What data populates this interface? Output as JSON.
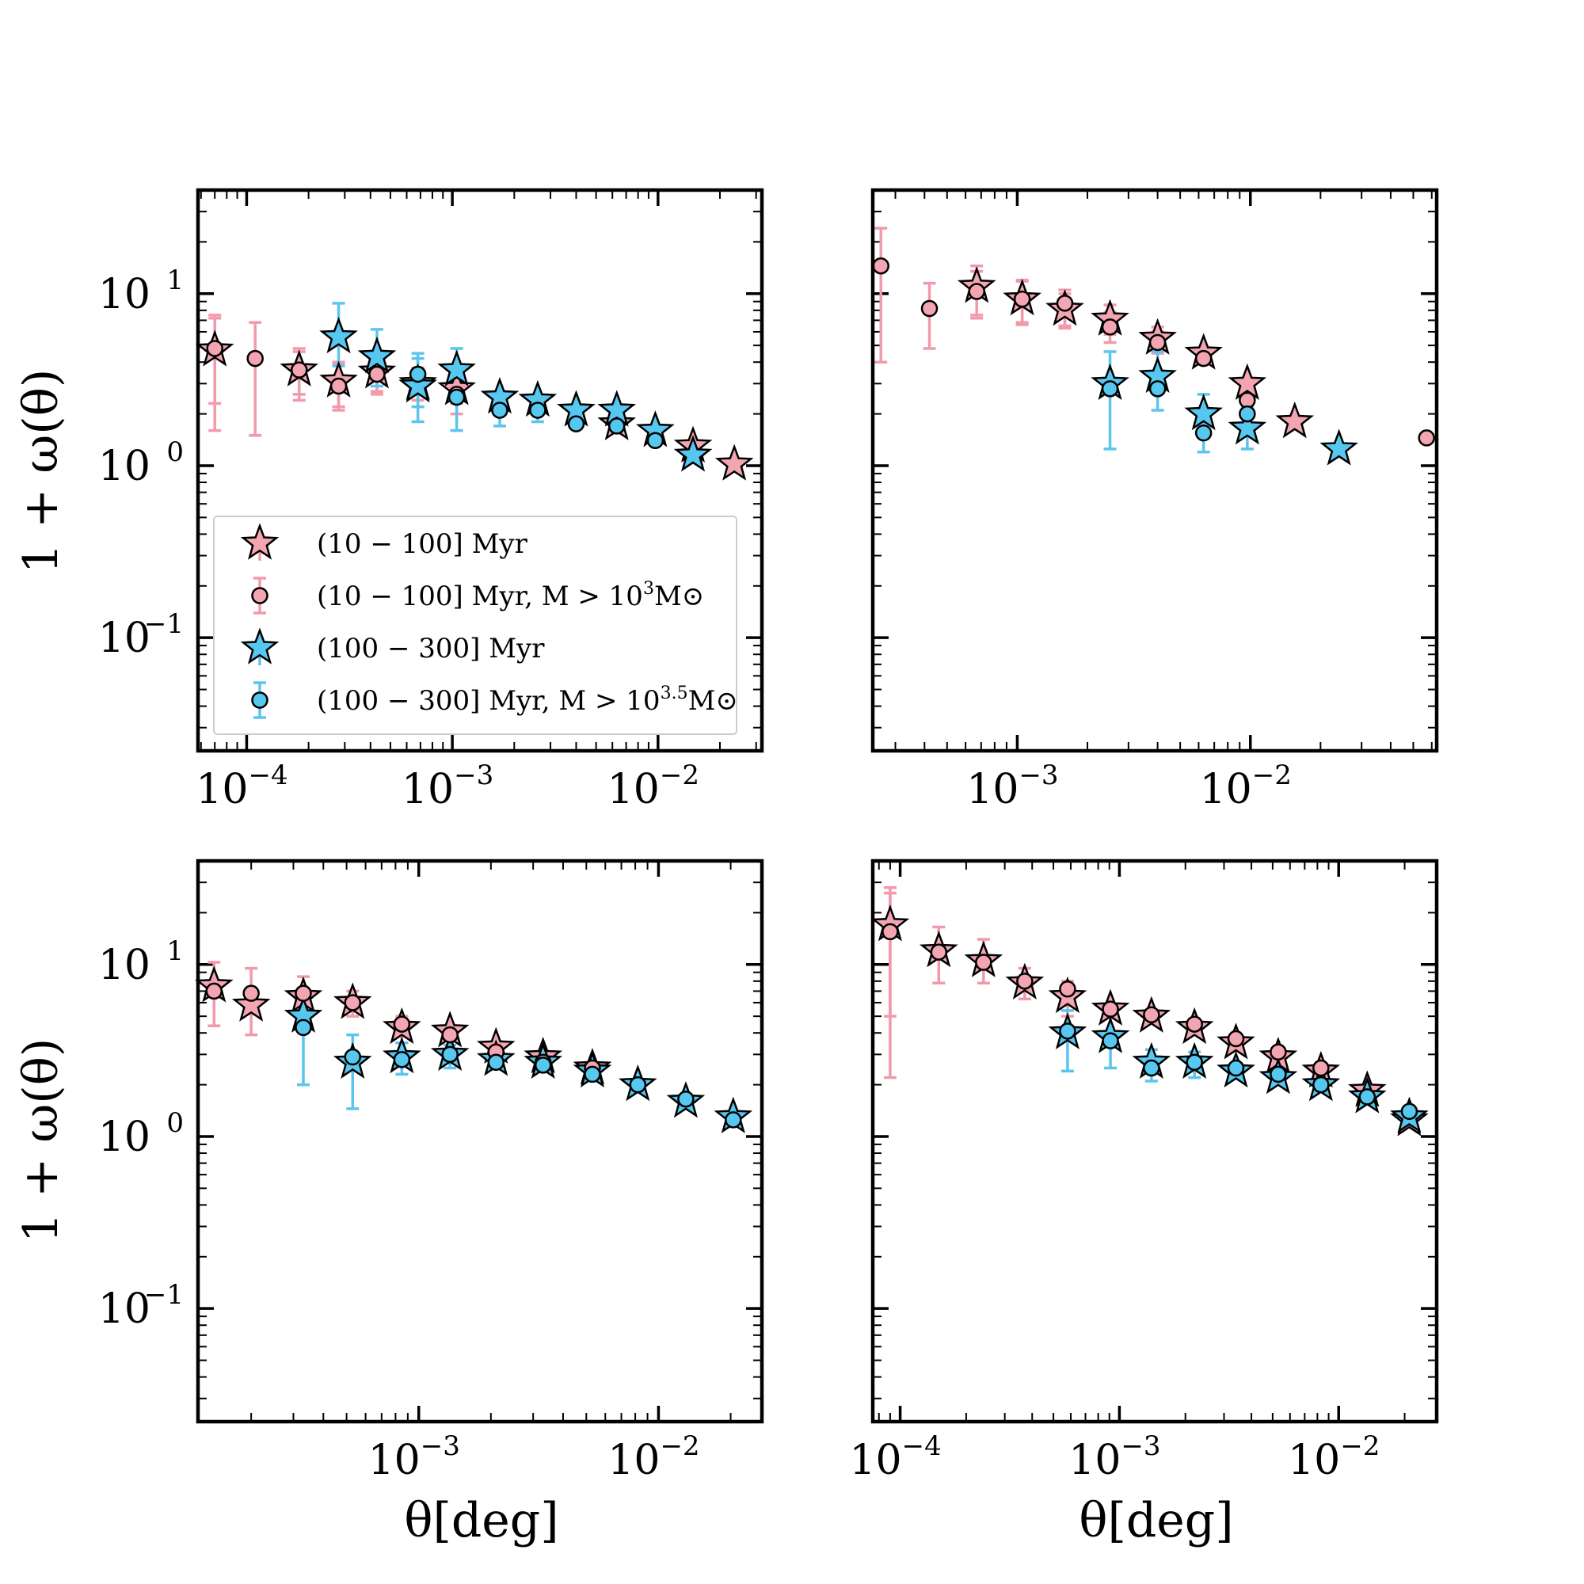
{
  "figure": {
    "ylabel": "1 + ω(θ)",
    "xlabel": "θ[deg]"
  },
  "legend": {
    "placement": "lower-left of top-left panel",
    "entries": [
      {
        "label": "(10 − 100] Myr",
        "sup": "",
        "tail": "",
        "marker": "star",
        "color": "#f4a5b2"
      },
      {
        "label": "(10 − 100] Myr,  M > 10",
        "sup": "3",
        "tail": "M⊙",
        "marker": "circle",
        "color": "#f4a5b2"
      },
      {
        "label": "(100 − 300] Myr",
        "sup": "",
        "tail": "",
        "marker": "star",
        "color": "#56c8f0"
      },
      {
        "label": "(100 − 300] Myr,  M > 10",
        "sup": "3.5",
        "tail": "M⊙",
        "marker": "circle",
        "color": "#56c8f0"
      }
    ]
  },
  "colors": {
    "young": "#f4a5b2",
    "old": "#56c8f0",
    "youngErr": "#f29aab",
    "oldErr": "#5cc5ee"
  },
  "chart_data": [
    {
      "type": "scatter",
      "xscale": "log",
      "yscale": "log",
      "xlim": [
        5.8e-05,
        0.032
      ],
      "ylim": [
        0.022,
        40
      ],
      "xticks": [
        "-4",
        "-3",
        "-2"
      ],
      "yticks": [
        "1",
        "0",
        "-1"
      ],
      "series": [
        {
          "marker": "star",
          "color": "young",
          "x": [
            7e-05,
            0.00018,
            0.00028,
            0.00043,
            0.00068,
            0.00105,
            0.0063,
            0.0148,
            0.0235
          ],
          "y": [
            4.7,
            3.6,
            3.1,
            3.5,
            3.0,
            2.8,
            1.75,
            1.3,
            1.02
          ],
          "err": [
            [
              1.6,
              7.5
            ],
            [
              2.6,
              4.8
            ],
            [
              2.2,
              4.0
            ],
            [
              2.7,
              4.4
            ],
            [
              2.4,
              3.7
            ],
            [
              2.3,
              3.4
            ],
            null,
            null,
            null
          ]
        },
        {
          "marker": "circle",
          "color": "young",
          "x": [
            7e-05,
            0.00011,
            0.00018,
            0.00028,
            0.00043,
            0.00105
          ],
          "y": [
            4.8,
            4.2,
            3.6,
            2.9,
            3.4,
            2.6
          ],
          "err": [
            [
              2.3,
              7.2
            ],
            [
              1.5,
              6.8
            ],
            [
              2.4,
              4.6
            ],
            [
              2.1,
              3.9
            ],
            [
              2.6,
              4.2
            ],
            [
              2.0,
              3.3
            ]
          ]
        },
        {
          "marker": "star",
          "color": "old",
          "x": [
            0.00028,
            0.00043,
            0.00068,
            0.00105,
            0.0017,
            0.0026,
            0.004,
            0.0063,
            0.0097,
            0.0148
          ],
          "y": [
            5.6,
            4.3,
            2.9,
            3.6,
            2.5,
            2.4,
            2.1,
            2.1,
            1.6,
            1.15
          ],
          "err": [
            [
              3.8,
              8.8
            ],
            [
              2.9,
              6.2
            ],
            [
              2.2,
              4.2
            ],
            [
              2.6,
              4.8
            ],
            null,
            null,
            null,
            null,
            null,
            null
          ]
        },
        {
          "marker": "circle",
          "color": "old",
          "x": [
            0.00068,
            0.00105,
            0.0017,
            0.0026,
            0.004,
            0.0063,
            0.0097
          ],
          "y": [
            3.4,
            2.5,
            2.1,
            2.1,
            1.75,
            1.7,
            1.4
          ],
          "err": [
            [
              1.8,
              4.5
            ],
            [
              1.6,
              3.4
            ],
            [
              1.7,
              2.5
            ],
            [
              1.8,
              2.4
            ],
            null,
            null,
            null
          ]
        }
      ]
    },
    {
      "type": "scatter",
      "xscale": "log",
      "yscale": "log",
      "xlim": [
        0.00024,
        0.063
      ],
      "ylim": [
        0.022,
        40
      ],
      "xticks": [
        "-3",
        "-2"
      ],
      "yticks": [],
      "series": [
        {
          "marker": "star",
          "color": "young",
          "x": [
            0.00067,
            0.00105,
            0.0016,
            0.0025,
            0.004,
            0.0063,
            0.0097,
            0.0155
          ],
          "y": [
            11.0,
            9.3,
            8.1,
            7.1,
            5.5,
            4.5,
            3.0,
            1.8
          ],
          "err": [
            [
              7.2,
              14.5
            ],
            [
              6.6,
              12.0
            ],
            [
              6.3,
              10.0
            ],
            [
              5.8,
              8.6
            ],
            [
              4.6,
              6.4
            ],
            null,
            null,
            null
          ]
        },
        {
          "marker": "circle",
          "color": "young",
          "x": [
            0.00026,
            0.00042,
            0.00067,
            0.00105,
            0.0016,
            0.0025,
            0.004,
            0.0063,
            0.0097,
            0.057
          ],
          "y": [
            14.5,
            8.2,
            10.3,
            9.3,
            8.8,
            6.4,
            5.2,
            4.2,
            2.4,
            1.45
          ],
          "err": [
            [
              4.0,
              24.0
            ],
            [
              4.8,
              11.5
            ],
            [
              7.5,
              13.5
            ],
            [
              6.8,
              11.8
            ],
            [
              6.5,
              10.5
            ],
            [
              5.2,
              7.8
            ],
            [
              4.5,
              6.0
            ],
            null,
            [
              2.0,
              2.8
            ],
            null
          ]
        },
        {
          "marker": "star",
          "color": "old",
          "x": [
            0.0025,
            0.004,
            0.0063,
            0.0097,
            0.024
          ],
          "y": [
            3.0,
            3.3,
            2.0,
            1.65,
            1.25
          ],
          "err": [
            [
              1.25,
              4.6
            ],
            [
              2.1,
              4.6
            ],
            [
              1.2,
              2.6
            ],
            [
              1.25,
              2.2
            ],
            null
          ]
        },
        {
          "marker": "circle",
          "color": "old",
          "x": [
            0.0025,
            0.004,
            0.0063,
            0.0097
          ],
          "y": [
            2.8,
            2.8,
            1.55,
            2.0
          ],
          "err": [
            null,
            null,
            null,
            null
          ]
        }
      ]
    },
    {
      "type": "scatter",
      "xscale": "log",
      "yscale": "log",
      "xlim": [
        0.00012,
        0.027
      ],
      "ylim": [
        0.022,
        40
      ],
      "xticks": [
        "-3",
        "-2"
      ],
      "yticks": [
        "1",
        "0",
        "-1"
      ],
      "series": [
        {
          "marker": "star",
          "color": "young",
          "x": [
            0.00014,
            0.0002,
            0.00033,
            0.00053,
            0.00085,
            0.00135,
            0.0021,
            0.0033,
            0.0053
          ],
          "y": [
            7.5,
            5.8,
            6.5,
            6.0,
            4.3,
            4.1,
            3.3,
            2.9,
            2.5
          ],
          "err": [
            [
              4.4,
              10.3
            ],
            [
              3.9,
              9.5
            ],
            [
              4.6,
              8.5
            ],
            [
              5.0,
              7.0
            ],
            [
              3.5,
              5.0
            ],
            null,
            null,
            null,
            null
          ]
        },
        {
          "marker": "circle",
          "color": "young",
          "x": [
            0.00014,
            0.0002,
            0.00033,
            0.00053,
            0.00085,
            0.00135,
            0.0021,
            0.0033,
            0.0053
          ],
          "y": [
            7.0,
            6.8,
            6.8,
            6.0,
            4.5,
            3.9,
            3.1,
            2.7,
            2.5
          ],
          "err": [
            null,
            null,
            null,
            null,
            null,
            null,
            null,
            null,
            null
          ]
        },
        {
          "marker": "star",
          "color": "old",
          "x": [
            0.00033,
            0.00053,
            0.00085,
            0.00135,
            0.0021,
            0.0033,
            0.0053,
            0.0082,
            0.013,
            0.0205
          ],
          "y": [
            5.0,
            2.7,
            2.9,
            3.0,
            2.8,
            2.7,
            2.4,
            2.0,
            1.6,
            1.3
          ],
          "err": [
            [
              2.0,
              7.0
            ],
            [
              1.45,
              3.9
            ],
            [
              2.3,
              3.5
            ],
            [
              2.5,
              3.4
            ],
            null,
            null,
            null,
            null,
            null,
            null
          ]
        },
        {
          "marker": "circle",
          "color": "old",
          "x": [
            0.00033,
            0.00053,
            0.00085,
            0.00135,
            0.0021,
            0.0033,
            0.0053,
            0.0082,
            0.013,
            0.0205
          ],
          "y": [
            4.3,
            2.9,
            2.8,
            3.0,
            2.7,
            2.6,
            2.3,
            2.0,
            1.65,
            1.25
          ],
          "err": [
            null,
            null,
            null,
            null,
            null,
            null,
            null,
            null,
            null,
            null
          ]
        }
      ]
    },
    {
      "type": "scatter",
      "xscale": "log",
      "yscale": "log",
      "xlim": [
        7.5e-05,
        0.028
      ],
      "ylim": [
        0.022,
        40
      ],
      "xticks": [
        "-4",
        "-3",
        "-2"
      ],
      "yticks": [],
      "series": [
        {
          "marker": "star",
          "color": "young",
          "x": [
            9e-05,
            0.00015,
            0.00024,
            0.00037,
            0.00058,
            0.00091,
            0.0014,
            0.0022,
            0.0034,
            0.0053,
            0.0083,
            0.0135,
            0.021
          ],
          "y": [
            17.0,
            12.0,
            10.5,
            7.8,
            6.5,
            5.5,
            5.0,
            4.3,
            3.5,
            2.9,
            2.4,
            1.85,
            1.25
          ],
          "err": [
            [
              2.2,
              28.0
            ],
            [
              7.8,
              16.5
            ],
            [
              7.8,
              14.0
            ],
            [
              6.3,
              9.5
            ],
            [
              5.0,
              8.0
            ],
            null,
            null,
            null,
            null,
            null,
            null,
            null,
            null
          ]
        },
        {
          "marker": "circle",
          "color": "young",
          "x": [
            9e-05,
            0.00015,
            0.00024,
            0.00037,
            0.00058,
            0.00091,
            0.0014,
            0.0022,
            0.0034,
            0.0053,
            0.0083
          ],
          "y": [
            15.5,
            11.8,
            10.3,
            8.0,
            7.2,
            5.5,
            5.1,
            4.5,
            3.7,
            3.1,
            2.5
          ],
          "err": [
            [
              5.0,
              26.0
            ],
            null,
            null,
            null,
            null,
            null,
            null,
            null,
            null,
            null,
            null
          ]
        },
        {
          "marker": "star",
          "color": "old",
          "x": [
            0.00058,
            0.00091,
            0.0014,
            0.0022,
            0.0034,
            0.0053,
            0.0083,
            0.0135,
            0.021
          ],
          "y": [
            4.0,
            3.8,
            2.7,
            2.7,
            2.4,
            2.2,
            2.0,
            1.7,
            1.3
          ],
          "err": [
            [
              2.4,
              5.4
            ],
            [
              2.5,
              5.0
            ],
            [
              2.1,
              3.2
            ],
            [
              2.2,
              3.1
            ],
            null,
            null,
            null,
            null,
            null
          ]
        },
        {
          "marker": "circle",
          "color": "old",
          "x": [
            0.00058,
            0.00091,
            0.0014,
            0.0022,
            0.0034,
            0.0053,
            0.0083,
            0.0135,
            0.021
          ],
          "y": [
            4.1,
            3.6,
            2.5,
            2.7,
            2.5,
            2.3,
            2.0,
            1.7,
            1.4
          ],
          "err": [
            null,
            null,
            null,
            null,
            null,
            null,
            null,
            null,
            null
          ]
        }
      ]
    }
  ]
}
